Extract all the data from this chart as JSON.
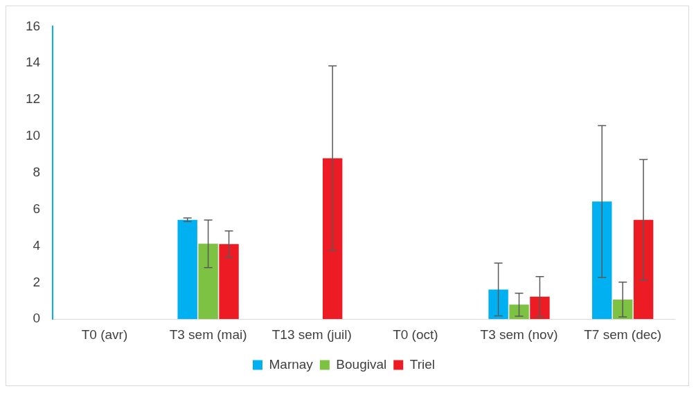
{
  "chart_data": {
    "type": "bar",
    "categories": [
      "T0 (avr)",
      "T3 sem (mai)",
      "T13 sem (juil)",
      "T0 (oct)",
      "T3 sem (nov)",
      "T7 sem (dec)"
    ],
    "series": [
      {
        "name": "Marnay",
        "color": "#00b0f0",
        "values": [
          null,
          5.43,
          null,
          null,
          1.62,
          6.43
        ],
        "errors": [
          null,
          0.1,
          null,
          null,
          1.44,
          4.15
        ]
      },
      {
        "name": "Bougival",
        "color": "#7dc242",
        "values": [
          null,
          4.12,
          null,
          null,
          0.79,
          1.07
        ],
        "errors": [
          null,
          1.3,
          null,
          null,
          0.63,
          0.95
        ]
      },
      {
        "name": "Triel",
        "color": "#ed1c24",
        "values": [
          null,
          4.1,
          8.8,
          null,
          1.23,
          5.43
        ],
        "errors": [
          null,
          0.72,
          5.05,
          null,
          1.1,
          3.3
        ]
      }
    ],
    "ylim": [
      0,
      16
    ],
    "yticks": [
      0,
      2,
      4,
      6,
      8,
      10,
      12,
      14,
      16
    ],
    "grid": false,
    "legend": "bottom"
  }
}
